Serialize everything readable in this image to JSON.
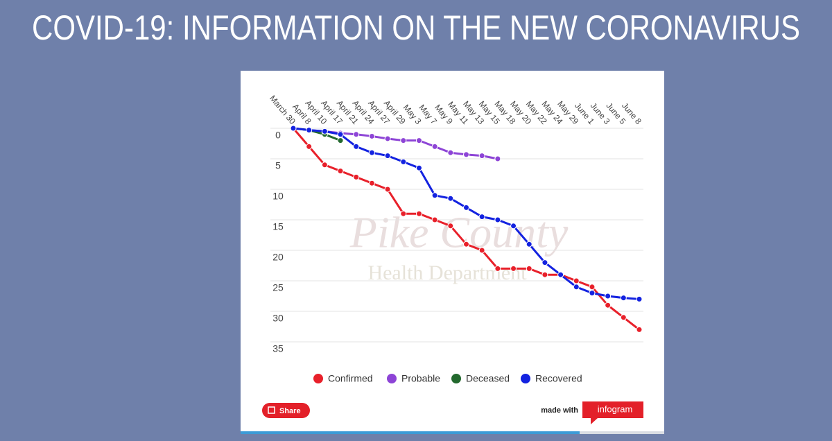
{
  "header": {
    "title": "COVID-19: INFORMATION ON THE NEW CORONAVIRUS"
  },
  "chart_data": {
    "type": "line",
    "categories": [
      "March 30",
      "April 8",
      "April 10",
      "April 17",
      "April 21",
      "April 24",
      "April 27",
      "April 29",
      "May 3",
      "May 7",
      "May 9",
      "May 11",
      "May 13",
      "May 15",
      "May 18",
      "May 20",
      "May 22",
      "May 24",
      "May 29",
      "June 1",
      "June 3",
      "June 5",
      "June 8"
    ],
    "series": [
      {
        "name": "Confirmed",
        "color": "#e8202a",
        "values": [
          0,
          3,
          6,
          7,
          8,
          9,
          10,
          14,
          14,
          15,
          16,
          19,
          20,
          23,
          23,
          23,
          24,
          24,
          25,
          26,
          29,
          31,
          33
        ]
      },
      {
        "name": "Probable",
        "color": "#8d44d6",
        "values": [
          0,
          0.3,
          0.5,
          0.8,
          1,
          1.3,
          1.7,
          2,
          2,
          3,
          4,
          4.3,
          4.5,
          5,
          null,
          null,
          null,
          null,
          null,
          null,
          null,
          null,
          null
        ]
      },
      {
        "name": "Deceased",
        "color": "#23692e",
        "values": [
          0,
          0.3,
          1,
          2,
          null,
          null,
          null,
          null,
          null,
          null,
          null,
          null,
          null,
          null,
          null,
          null,
          null,
          null,
          null,
          null,
          null,
          null,
          null
        ]
      },
      {
        "name": "Recovered",
        "color": "#1322e0",
        "values": [
          0,
          0.3,
          0.5,
          1,
          3,
          4,
          4.5,
          5.5,
          6.5,
          11,
          11.5,
          13,
          14.5,
          15,
          16,
          19,
          22,
          24,
          26,
          27,
          27.5,
          27.8,
          28
        ]
      }
    ],
    "ylim": [
      0,
      35
    ],
    "yticks": [
      0,
      5,
      10,
      15,
      20,
      25,
      30,
      35
    ],
    "y_inverted": true,
    "grid": true
  },
  "watermark": {
    "name": "Pike County",
    "subtitle": "Health Department"
  },
  "footer": {
    "share": "Share",
    "made_with": "made with",
    "brand": "infogram"
  }
}
